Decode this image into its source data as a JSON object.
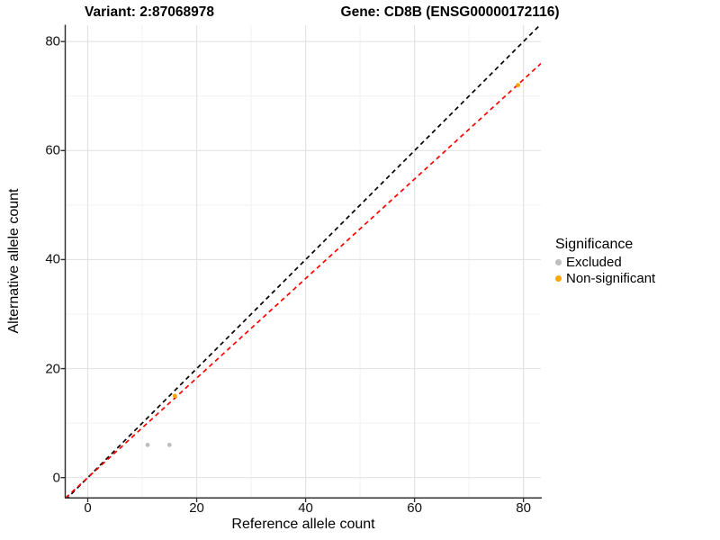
{
  "chart_data": {
    "type": "scatter",
    "titles": [
      "Variant: 2:87068978",
      "Gene: CD8B (ENSG00000172116)"
    ],
    "xlabel": "Reference allele count",
    "ylabel": "Alternative allele count",
    "xlim": [
      -4.05,
      83.2
    ],
    "ylim": [
      -3.6,
      83.0
    ],
    "x_ticks": [
      0,
      20,
      40,
      60,
      80
    ],
    "y_ticks": [
      0,
      20,
      40,
      60,
      80
    ],
    "x_minor_ticks": [
      10,
      30,
      50,
      70
    ],
    "y_minor_ticks": [
      10,
      30,
      50,
      70
    ],
    "grid": true,
    "legend_position": "right",
    "legend_title": "Significance",
    "series": [
      {
        "name": "Excluded",
        "color": "#BEBEBE",
        "points": [
          {
            "x": 11,
            "y": 6
          },
          {
            "x": 15,
            "y": 6
          }
        ]
      },
      {
        "name": "Non-significant",
        "color": "#FFA500",
        "points": [
          {
            "x": 16,
            "y": 15
          },
          {
            "x": 79,
            "y": 72
          }
        ]
      }
    ],
    "ablines": [
      {
        "name": "identity-line",
        "slope": 1.0,
        "intercept": 0,
        "color": "#000000",
        "dash": "dashed"
      },
      {
        "name": "expected-ratio-line",
        "slope": 0.913,
        "intercept": 0,
        "color": "#FF0000",
        "dash": "dashed"
      }
    ]
  },
  "colors": {
    "axis_line": "#333333",
    "grid_major": "#E3E3E3",
    "grid_minor": "#F1F1F1",
    "background": "#FFFFFF"
  }
}
